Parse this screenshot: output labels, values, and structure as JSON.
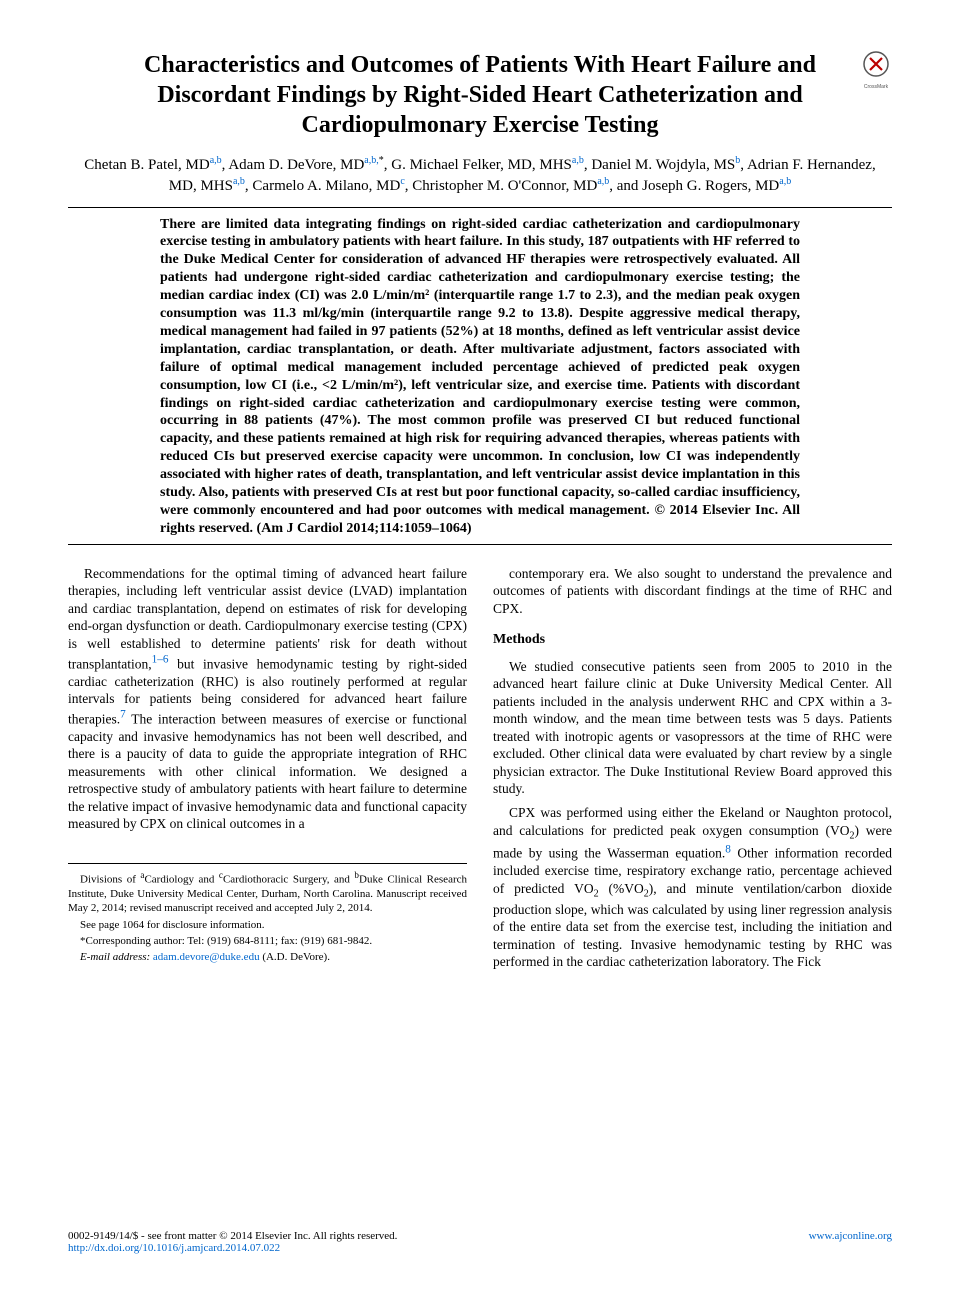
{
  "title": "Characteristics and Outcomes of Patients With Heart Failure and Discordant Findings by Right-Sided Heart Catheterization and Cardiopulmonary Exercise Testing",
  "authors_html": "Chetan B. Patel, MD<span class='sup'>a,b</span>, Adam D. DeVore, MD<span class='sup'>a,b,</span><span class='sup-black'>*</span>, G. Michael Felker, MD, MHS<span class='sup'>a,b</span>, Daniel M. Wojdyla, MS<span class='sup'>b</span>, Adrian F. Hernandez, MD, MHS<span class='sup'>a,b</span>, Carmelo A. Milano, MD<span class='sup'>c</span>, Christopher M. O'Connor, MD<span class='sup'>a,b</span>, and Joseph G. Rogers, MD<span class='sup'>a,b</span>",
  "abstract": "There are limited data integrating findings on right-sided cardiac catheterization and cardiopulmonary exercise testing in ambulatory patients with heart failure. In this study, 187 outpatients with HF referred to the Duke Medical Center for consideration of advanced HF therapies were retrospectively evaluated. All patients had undergone right-sided cardiac catheterization and cardiopulmonary exercise testing; the median cardiac index (CI) was 2.0 L/min/m² (interquartile range 1.7 to 2.3), and the median peak oxygen consumption was 11.3 ml/kg/min (interquartile range 9.2 to 13.8). Despite aggressive medical therapy, medical management had failed in 97 patients (52%) at 18 months, defined as left ventricular assist device implantation, cardiac transplantation, or death. After multivariate adjustment, factors associated with failure of optimal medical management included percentage achieved of predicted peak oxygen consumption, low CI (i.e., <2 L/min/m²), left ventricular size, and exercise time. Patients with discordant findings on right-sided cardiac catheterization and cardiopulmonary exercise testing were common, occurring in 88 patients (47%). The most common profile was preserved CI but reduced functional capacity, and these patients remained at high risk for requiring advanced therapies, whereas patients with reduced CIs but preserved exercise capacity were uncommon. In conclusion, low CI was independently associated with higher rates of death, transplantation, and left ventricular assist device implantation in this study. Also, patients with preserved CIs at rest but poor functional capacity, so-called cardiac insufficiency, were commonly encountered and had poor outcomes with medical management.  © 2014 Elsevier Inc. All rights reserved. (Am J Cardiol 2014;114:1059–1064)",
  "body_left_p1": "Recommendations for the optimal timing of advanced heart failure therapies, including left ventricular assist device (LVAD) implantation and cardiac transplantation, depend on estimates of risk for developing end-organ dysfunction or death. Cardiopulmonary exercise testing (CPX) is well established to determine patients' risk for death without transplantation,<span class='ref-link'><sup>1–6</sup></span> but invasive hemodynamic testing by right-sided cardiac catheterization (RHC) is also routinely performed at regular intervals for patients being considered for advanced heart failure therapies.<span class='ref-link'><sup>7</sup></span> The interaction between measures of exercise or functional capacity and invasive hemodynamics has not been well described, and there is a paucity of data to guide the appropriate integration of RHC measurements with other clinical information. We designed a retrospective study of ambulatory patients with heart failure to determine the relative impact of invasive hemodynamic data and functional capacity measured by CPX on clinical outcomes in a",
  "body_right_p1": "contemporary era. We also sought to understand the prevalence and outcomes of patients with discordant findings at the time of RHC and CPX.",
  "methods_heading": "Methods",
  "body_right_p2": "We studied consecutive patients seen from 2005 to 2010 in the advanced heart failure clinic at Duke University Medical Center. All patients included in the analysis underwent RHC and CPX within a 3-month window, and the mean time between tests was 5 days. Patients treated with inotropic agents or vasopressors at the time of RHC were excluded. Other clinical data were evaluated by chart review by a single physician extractor. The Duke Institutional Review Board approved this study.",
  "body_right_p3": "CPX was performed using either the Ekeland or Naughton protocol, and calculations for predicted peak oxygen consumption (VO<sub>2</sub>) were made by using the Wasserman equation.<span class='ref-link'><sup>8</sup></span> Other information recorded included exercise time, respiratory exchange ratio, percentage achieved of predicted VO<sub>2</sub> (%VO<sub>2</sub>), and minute ventilation/carbon dioxide production slope, which was calculated by using liner regression analysis of the entire data set from the exercise test, including the initiation and termination of testing. Invasive hemodynamic testing by RHC was performed in the cardiac catheterization laboratory. The Fick",
  "footnote_affil": "Divisions of <sup>a</sup>Cardiology and <sup>c</sup>Cardiothoracic Surgery, and <sup>b</sup>Duke Clinical Research Institute, Duke University Medical Center, Durham, North Carolina. Manuscript received May 2, 2014; revised manuscript received and accepted July 2, 2014.",
  "footnote_see": "See page 1064 for disclosure information.",
  "footnote_corr": "*Corresponding author: Tel: (919) 684-8111; fax: (919) 681-9842.",
  "footnote_email_label": "E-mail address:",
  "footnote_email": "adam.devore@duke.edu",
  "footnote_email_suffix": "(A.D. DeVore).",
  "footer_left": "0002-9149/14/$ - see front matter © 2014 Elsevier Inc. All rights reserved.",
  "footer_doi": "http://dx.doi.org/10.1016/j.amjcard.2014.07.022",
  "footer_right": "www.ajconline.org",
  "colors": {
    "link": "#0066cc",
    "text": "#000000",
    "bg": "#ffffff"
  }
}
